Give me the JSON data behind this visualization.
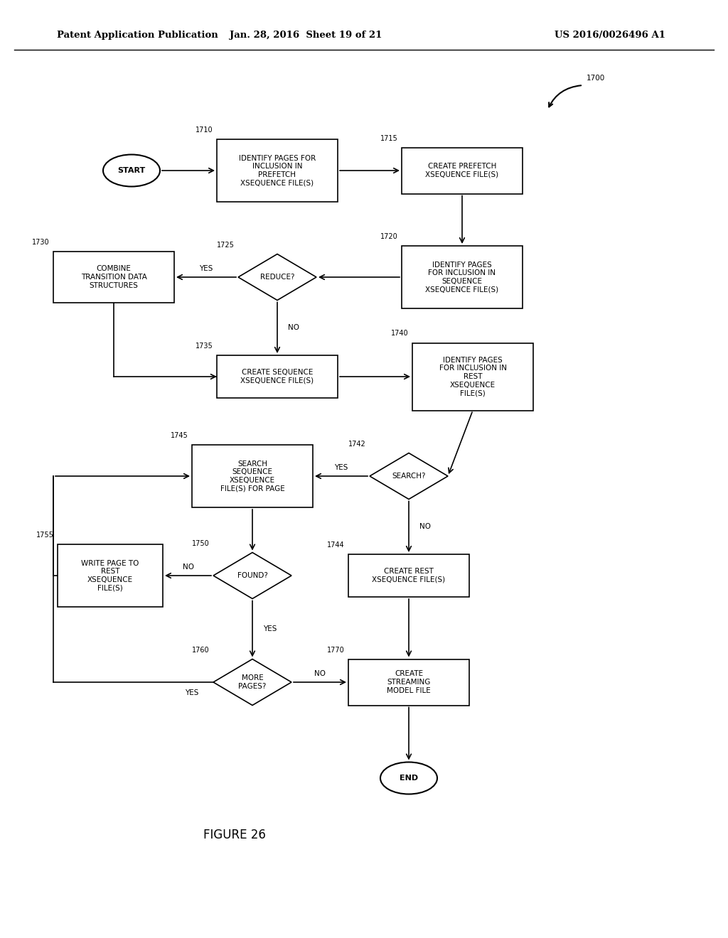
{
  "title_left": "Patent Application Publication",
  "title_mid": "Jan. 28, 2016  Sheet 19 of 21",
  "title_right": "US 2016/0026496 A1",
  "figure_label": "FIGURE 26",
  "bg_color": "#ffffff"
}
